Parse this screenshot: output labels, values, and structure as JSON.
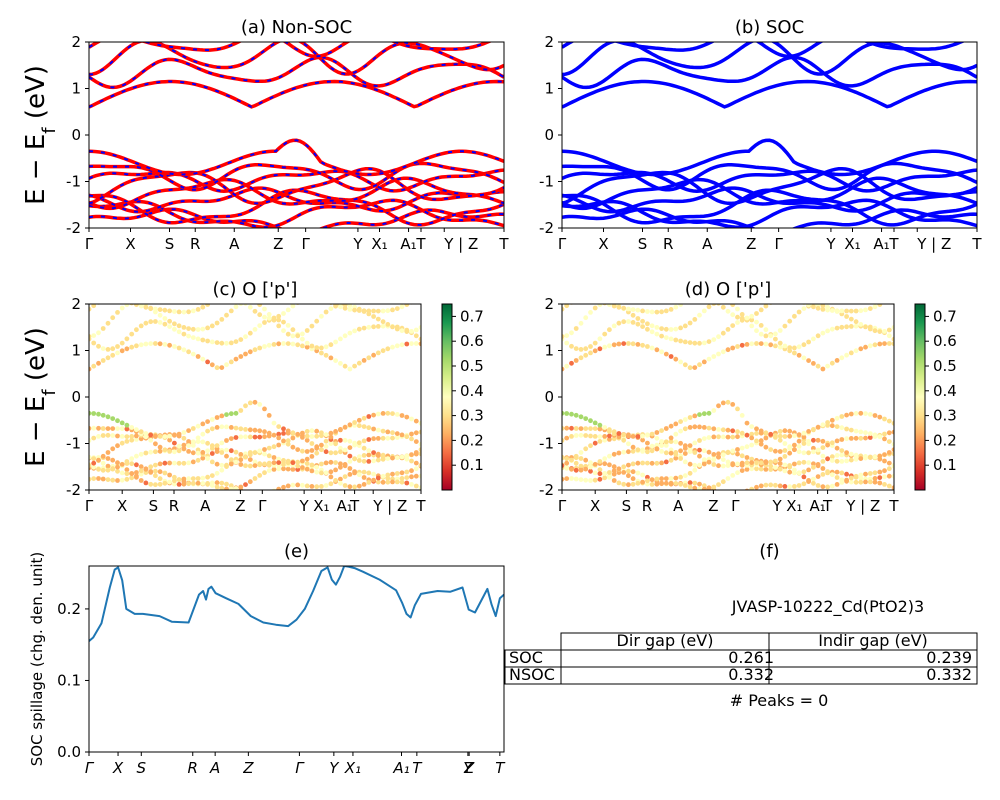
{
  "figure": {
    "ylabel_band": "E − E",
    "ylabel_band_sub": "f",
    "ylabel_band_unit": " (eV)",
    "ylabel_spillage": "SOC spillage (chg. den. unit)"
  },
  "chart_data": [
    {
      "id": "a",
      "type": "line",
      "title": "(a) Non-SOC",
      "ylim": [
        -2,
        2
      ],
      "yticks": [
        -2,
        -1,
        0,
        1,
        2
      ],
      "xticks": [
        "Γ",
        "X",
        "S",
        "R",
        "A",
        "Z",
        "Γ",
        "Y",
        "X₁",
        "A₁",
        "T",
        "Y | Z",
        "T"
      ],
      "xtick_pos": [
        0,
        0.1,
        0.194,
        0.256,
        0.35,
        0.456,
        0.522,
        0.648,
        0.7,
        0.77,
        0.8,
        0.856,
        1.0
      ],
      "series_style": "red-blue dashed",
      "colors": [
        "#ff0000",
        "#0000ff"
      ]
    },
    {
      "id": "b",
      "type": "line",
      "title": "(b) SOC",
      "ylim": [
        -2,
        2
      ],
      "yticks": [
        -2,
        -1,
        0,
        1,
        2
      ],
      "xticks": [
        "Γ",
        "X",
        "S",
        "R",
        "A",
        "Z",
        "Γ",
        "Y",
        "X₁",
        "A₁",
        "T",
        "Y | Z",
        "T"
      ],
      "xtick_pos": [
        0,
        0.1,
        0.194,
        0.256,
        0.35,
        0.456,
        0.522,
        0.648,
        0.7,
        0.77,
        0.8,
        0.856,
        1.0
      ],
      "colors": [
        "#0000ff"
      ]
    },
    {
      "id": "c",
      "type": "scatter",
      "title": "(c)  O ['p']",
      "ylim": [
        -2,
        2
      ],
      "yticks": [
        -2,
        -1,
        0,
        1,
        2
      ],
      "xticks": [
        "Γ",
        "X",
        "S",
        "R",
        "A",
        "Z",
        "Γ",
        "Y",
        "X₁",
        "A₁",
        "T",
        "Y | Z",
        "T"
      ],
      "xtick_pos": [
        0,
        0.1,
        0.194,
        0.256,
        0.35,
        0.456,
        0.522,
        0.648,
        0.7,
        0.77,
        0.8,
        0.856,
        1.0
      ],
      "colorbar_ticks": [
        0.1,
        0.2,
        0.3,
        0.4,
        0.5,
        0.6,
        0.7
      ],
      "colorbar_range": [
        0.0,
        0.75
      ],
      "colormap": "RdYlGn"
    },
    {
      "id": "d",
      "type": "scatter",
      "title": "(d) O ['p']",
      "ylim": [
        -2,
        2
      ],
      "yticks": [
        -2,
        -1,
        0,
        1,
        2
      ],
      "xticks": [
        "Γ",
        "X",
        "S",
        "R",
        "A",
        "Z",
        "Γ",
        "Y",
        "X₁",
        "A₁",
        "T",
        "Y | Z",
        "T"
      ],
      "xtick_pos": [
        0,
        0.1,
        0.194,
        0.256,
        0.35,
        0.456,
        0.522,
        0.648,
        0.7,
        0.77,
        0.8,
        0.856,
        1.0
      ],
      "colorbar_ticks": [
        0.1,
        0.2,
        0.3,
        0.4,
        0.5,
        0.6,
        0.7
      ],
      "colorbar_range": [
        0.0,
        0.75
      ],
      "colormap": "RdYlGn"
    },
    {
      "id": "e",
      "type": "line",
      "title": "(e)",
      "ylabel": "SOC spillage (chg. den. unit)",
      "ylim": [
        0.0,
        0.26
      ],
      "yticks": [
        0.0,
        0.1,
        0.2
      ],
      "xticks": [
        "Γ",
        "X",
        "S",
        "R",
        "A",
        "Z",
        "Γ",
        "Y",
        "X₁",
        "A₁",
        "T",
        "Y",
        "Z",
        "T"
      ],
      "xtick_pos": [
        0,
        0.07,
        0.126,
        0.25,
        0.304,
        0.384,
        0.507,
        0.59,
        0.636,
        0.753,
        0.79,
        0.913,
        0.916,
        0.99
      ],
      "color": "#1f77b4",
      "x": [
        0,
        0.01,
        0.03,
        0.05,
        0.062,
        0.07,
        0.08,
        0.09,
        0.11,
        0.13,
        0.17,
        0.2,
        0.24,
        0.265,
        0.275,
        0.282,
        0.288,
        0.295,
        0.305,
        0.33,
        0.36,
        0.39,
        0.42,
        0.45,
        0.48,
        0.5,
        0.52,
        0.54,
        0.56,
        0.575,
        0.585,
        0.595,
        0.605,
        0.615,
        0.625,
        0.64,
        0.66,
        0.7,
        0.74,
        0.755,
        0.765,
        0.775,
        0.785,
        0.8,
        0.84,
        0.87,
        0.9,
        0.915,
        0.93,
        0.96,
        0.97,
        0.98,
        0.99,
        1.0
      ],
      "y": [
        0.155,
        0.16,
        0.18,
        0.23,
        0.255,
        0.258,
        0.24,
        0.2,
        0.193,
        0.193,
        0.19,
        0.182,
        0.181,
        0.22,
        0.225,
        0.213,
        0.228,
        0.231,
        0.222,
        0.215,
        0.207,
        0.19,
        0.181,
        0.178,
        0.176,
        0.185,
        0.2,
        0.225,
        0.253,
        0.258,
        0.241,
        0.234,
        0.245,
        0.26,
        0.259,
        0.257,
        0.252,
        0.241,
        0.226,
        0.208,
        0.193,
        0.188,
        0.205,
        0.221,
        0.225,
        0.224,
        0.23,
        0.199,
        0.195,
        0.228,
        0.206,
        0.19,
        0.215,
        0.22
      ]
    },
    {
      "id": "f",
      "type": "table",
      "title": "(f)",
      "material": "JVASP-10222_Cd(PtO2)3",
      "columns": [
        "Dir gap (eV)",
        "Indir gap (eV)"
      ],
      "rows": [
        {
          "label": "SOC",
          "values": [
            "0.261",
            "0.239"
          ]
        },
        {
          "label": "NSOC",
          "values": [
            "0.332",
            "0.332"
          ]
        }
      ],
      "footer": "# Peaks = 0"
    }
  ]
}
